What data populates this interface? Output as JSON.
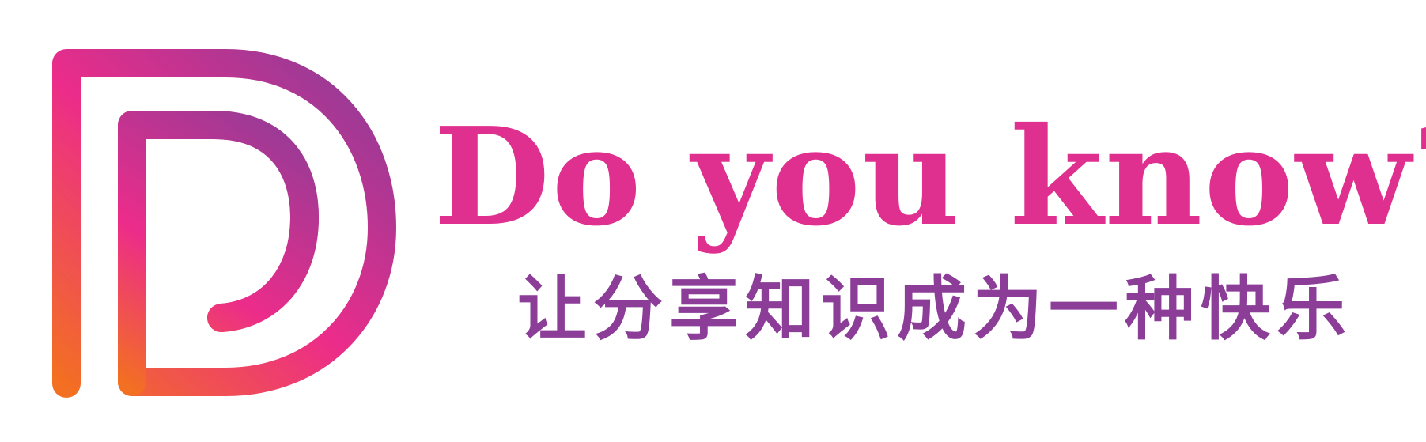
{
  "brand": {
    "tagline": "Do you know?",
    "slogan": "让分享知识成为一种快乐"
  },
  "logo": {
    "icon": "d-monogram-logo-icon",
    "gradient_colors": [
      "#f36f22",
      "#ec2c8a",
      "#8b3d98"
    ]
  },
  "colors": {
    "tagline": "#e0308f",
    "slogan": "#8b3d98",
    "background": "#ffffff"
  }
}
